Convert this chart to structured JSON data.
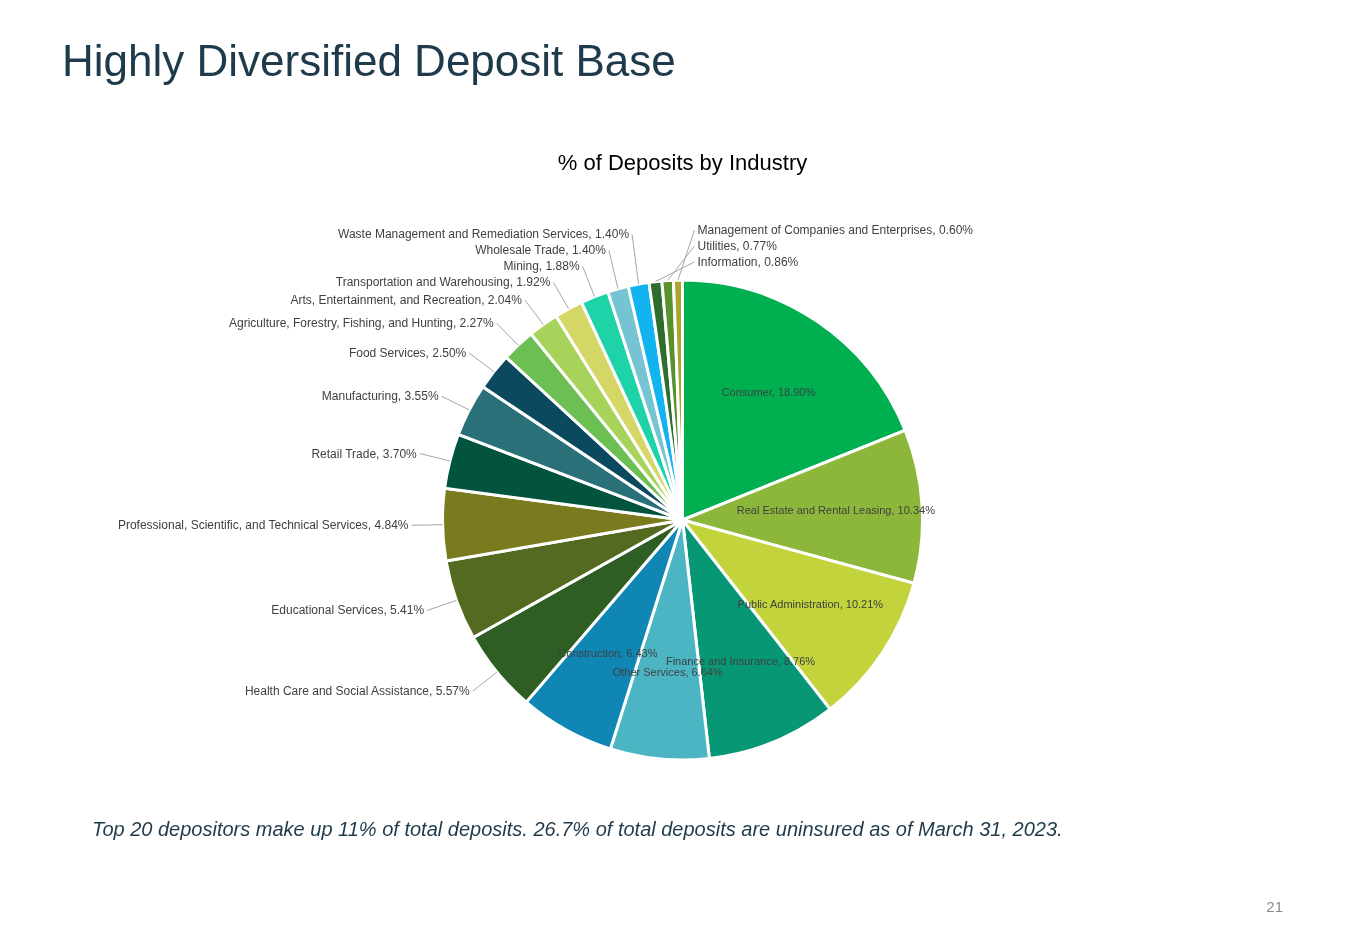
{
  "chart_data": {
    "type": "pie",
    "title": "Highly Diversified Deposit Base",
    "subtitle": "% of Deposits by Industry",
    "categories": [
      "Consumer",
      "Real Estate and Rental Leasing",
      "Public Administration",
      "Finance and Insurance",
      "Other Services",
      "Construction",
      "Health Care and Social Assistance",
      "Educational Services",
      "Professional, Scientific, and Technical Services",
      "Retail Trade",
      "Manufacturing",
      "Food Services",
      "Agriculture, Forestry, Fishing, and Hunting",
      "Arts, Entertainment, and Recreation",
      "Transportation and Warehousing",
      "Mining",
      "Wholesale Trade",
      "Waste Management and Remediation Services",
      "Information",
      "Utilities",
      "Management of Companies and Enterprises"
    ],
    "values": [
      18.9,
      10.34,
      10.21,
      8.76,
      6.64,
      6.43,
      5.57,
      5.41,
      4.84,
      3.7,
      3.55,
      2.5,
      2.27,
      2.04,
      1.92,
      1.88,
      1.4,
      1.4,
      0.86,
      0.77,
      0.6
    ],
    "colors": [
      "#00b050",
      "#8cb73a",
      "#c3d33c",
      "#079774",
      "#4bb5c4",
      "#0f86b3",
      "#2f5e24",
      "#536a20",
      "#7a7a1f",
      "#03543f",
      "#2a7078",
      "#0b4a5e",
      "#6cbf52",
      "#a8d35b",
      "#d4d765",
      "#1dd3a7",
      "#76c3d3",
      "#12b3ee",
      "#2e6d2e",
      "#59922c",
      "#a8a62c"
    ],
    "value_labels": [
      "18.90%",
      "10.34%",
      "10.21%",
      "8.76%",
      "6.64%",
      "6.43%",
      "5.57%",
      "5.41%",
      "4.84%",
      "3.70%",
      "3.55%",
      "2.50%",
      "2.27%",
      "2.04%",
      "1.92%",
      "1.88%",
      "1.40%",
      "1.40%",
      "0.86%",
      "0.77%",
      "0.60%"
    ],
    "annotations": [
      "Top 20 depositors make up 11% of total deposits.  26.7% of total deposits are uninsured as of March 31, 2023.",
      "21"
    ]
  }
}
